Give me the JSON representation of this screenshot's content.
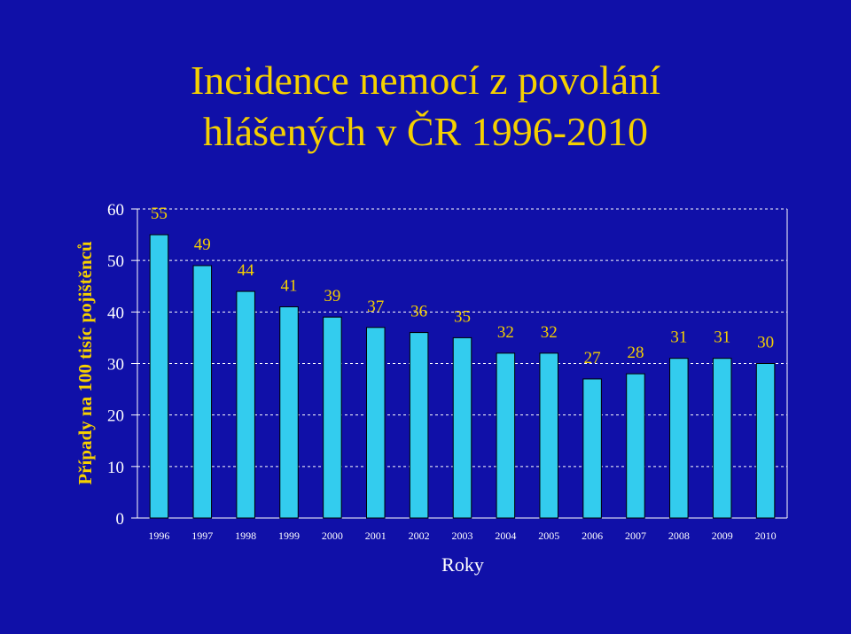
{
  "chart_data": {
    "type": "bar",
    "title_line1": "Incidence nemocí z povolání",
    "title_line2": "hlášených v ČR 1996-2010",
    "ylabel": "Případy na 100 tisíc pojištěnců",
    "xlabel": "Roky",
    "ylim": [
      0,
      60
    ],
    "yticks": [
      "0",
      "10",
      "20",
      "30",
      "40",
      "50",
      "60"
    ],
    "grid": true,
    "categories": [
      "1996",
      "1997",
      "1998",
      "1999",
      "2000",
      "2001",
      "2002",
      "2003",
      "2004",
      "2005",
      "2006",
      "2007",
      "2008",
      "2009",
      "2010"
    ],
    "values": [
      55,
      49,
      44,
      41,
      39,
      37,
      36,
      35,
      32,
      32,
      27,
      28,
      31,
      31,
      30
    ],
    "colors": {
      "background": "#1010a8",
      "bar": "#33ccee",
      "bar_edge": "#000000",
      "grid": "#ffffff",
      "title": "#f5d000",
      "data_label": "#f5d000",
      "axis_text": "#ffffff"
    }
  }
}
